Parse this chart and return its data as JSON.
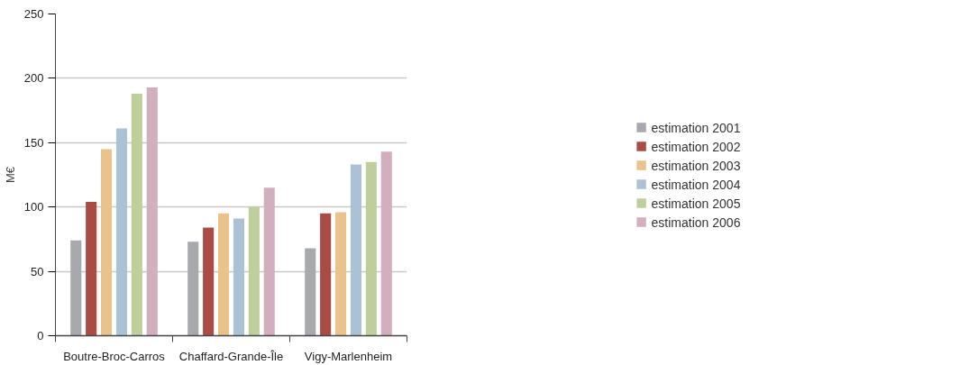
{
  "chart_data": {
    "type": "bar",
    "ylabel": "M€",
    "categories": [
      "Boutre-Broc-Carros",
      "Chaffard-Grande-Île",
      "Vigy-Marlenheim"
    ],
    "series": [
      {
        "name": "estimation 2001",
        "color": "#a7a9ac",
        "values": [
          74,
          73,
          68
        ]
      },
      {
        "name": "estimation 2002",
        "color": "#ab4c44",
        "values": [
          104,
          84,
          95
        ]
      },
      {
        "name": "estimation 2003",
        "color": "#e9c28c",
        "values": [
          145,
          95,
          96
        ]
      },
      {
        "name": "estimation 2004",
        "color": "#abc1d6",
        "values": [
          161,
          91,
          133
        ]
      },
      {
        "name": "estimation 2005",
        "color": "#bfcf9b",
        "values": [
          188,
          100,
          135
        ]
      },
      {
        "name": "estimation 2006",
        "color": "#d2aebe",
        "values": [
          193,
          115,
          143
        ]
      }
    ],
    "ylim": [
      0,
      250
    ],
    "yticks": [
      0,
      50,
      100,
      150,
      200,
      250
    ],
    "grid": "y",
    "legend": "right"
  }
}
